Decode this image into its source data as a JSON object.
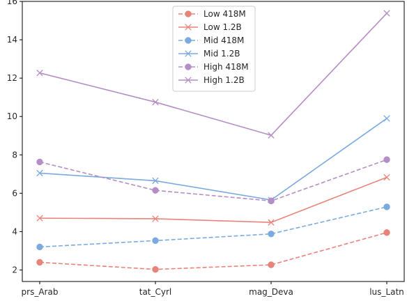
{
  "chart_data": {
    "type": "line",
    "title": "",
    "xlabel": "",
    "ylabel": "",
    "categories": [
      "prs_Arab",
      "tat_Cyrl",
      "mag_Deva",
      "lus_Latn"
    ],
    "ylim": [
      1.4,
      16.0
    ],
    "yticks": [
      2,
      4,
      6,
      8,
      10,
      12,
      14,
      16
    ],
    "grid": false,
    "legend_position": "top-center",
    "series": [
      {
        "name": "Low 418M",
        "values": [
          2.4,
          2.03,
          2.27,
          3.95
        ],
        "color": "#E8837A",
        "dash": "dashed",
        "marker": "circle"
      },
      {
        "name": "Low 1.2B",
        "values": [
          4.7,
          4.67,
          4.48,
          6.83
        ],
        "color": "#E8837A",
        "dash": "solid",
        "marker": "x"
      },
      {
        "name": "Mid 418M",
        "values": [
          3.2,
          3.53,
          3.88,
          5.29
        ],
        "color": "#7AAADF",
        "dash": "dashed",
        "marker": "circle"
      },
      {
        "name": "Mid 1.2B",
        "values": [
          7.05,
          6.65,
          5.65,
          9.9
        ],
        "color": "#7AAADF",
        "dash": "solid",
        "marker": "x"
      },
      {
        "name": "High 418M",
        "values": [
          7.63,
          6.15,
          5.6,
          7.75
        ],
        "color": "#B48EC5",
        "dash": "dashed",
        "marker": "circle"
      },
      {
        "name": "High 1.2B",
        "values": [
          12.27,
          10.75,
          9.02,
          15.38
        ],
        "color": "#B48EC5",
        "dash": "solid",
        "marker": "x"
      }
    ]
  }
}
